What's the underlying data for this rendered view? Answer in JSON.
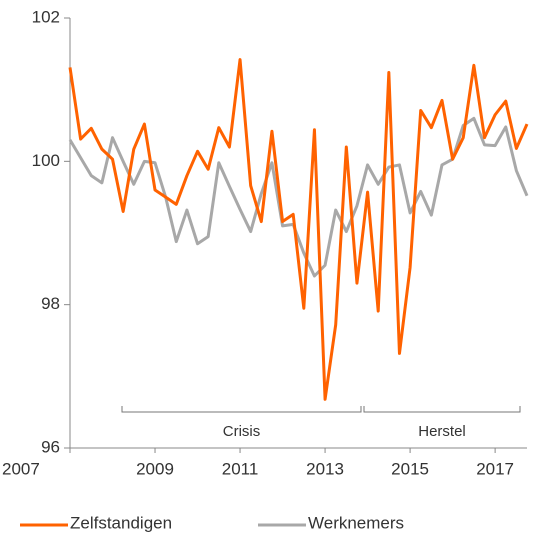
{
  "chart_data": {
    "type": "line",
    "x": [
      2007,
      2007.25,
      2007.5,
      2007.75,
      2008,
      2008.25,
      2008.5,
      2008.75,
      2009,
      2009.25,
      2009.5,
      2009.75,
      2010,
      2010.25,
      2010.5,
      2010.75,
      2011,
      2011.25,
      2011.5,
      2011.75,
      2012,
      2012.25,
      2012.5,
      2012.75,
      2013,
      2013.25,
      2013.5,
      2013.75,
      2014,
      2014.25,
      2014.5,
      2014.75,
      2015,
      2015.25,
      2015.5,
      2015.75,
      2016,
      2016.25,
      2016.5,
      2016.75,
      2017,
      2017.25,
      2017.5,
      2017.75
    ],
    "series": [
      {
        "name": "Zelfstandigen",
        "color": "#ff6200",
        "values": [
          101.31,
          100.31,
          100.46,
          100.17,
          100.03,
          99.3,
          100.17,
          100.52,
          99.6,
          99.5,
          99.4,
          99.8,
          100.14,
          99.89,
          100.47,
          100.2,
          101.42,
          99.66,
          99.16,
          100.42,
          99.16,
          99.26,
          97.95,
          100.44,
          96.68,
          97.72,
          100.2,
          98.3,
          99.57,
          97.91,
          101.24,
          97.32,
          98.52,
          100.71,
          100.47,
          100.85,
          100.03,
          100.33,
          101.34,
          100.33,
          100.65,
          100.84,
          100.18,
          100.52
        ]
      },
      {
        "name": "Werknemers",
        "color": "#a8a8a8",
        "values": [
          100.3,
          100.05,
          99.8,
          99.7,
          100.33,
          100.0,
          99.68,
          100.0,
          99.98,
          99.5,
          98.88,
          99.32,
          98.85,
          98.95,
          99.98,
          99.65,
          99.33,
          99.02,
          99.55,
          99.98,
          99.1,
          99.12,
          98.72,
          98.4,
          98.55,
          99.32,
          99.02,
          99.38,
          99.95,
          99.68,
          99.92,
          99.95,
          99.28,
          99.58,
          99.25,
          99.95,
          100.03,
          100.5,
          100.6,
          100.23,
          100.22,
          100.48,
          99.87,
          99.52
        ]
      }
    ],
    "xlim": [
      2007,
      2017.75
    ],
    "xticks": [
      2007,
      2009,
      2011,
      2013,
      2015,
      2017
    ],
    "ylim": [
      96,
      102
    ],
    "yticks": [
      96,
      98,
      100,
      102
    ],
    "annotations": [
      "Crisis",
      "Herstel"
    ],
    "legend": "bottom"
  }
}
